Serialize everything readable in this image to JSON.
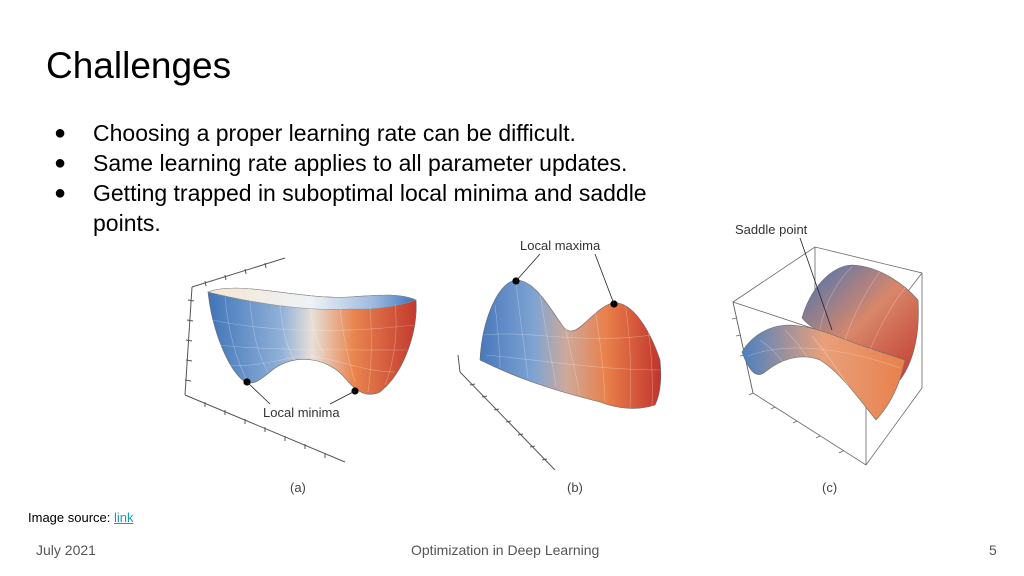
{
  "slide": {
    "title": "Challenges",
    "bullets": [
      "Choosing a proper learning rate can be difficult.",
      "Same learning rate applies to all parameter updates.",
      "Getting trapped in suboptimal local minima and saddle",
      "points."
    ],
    "bullet_symbol": "●",
    "colors": {
      "surface_blue": "#3b6fb6",
      "surface_red": "#c23a2e",
      "surface_orange": "#e8804c",
      "link": "#1a9bb5"
    }
  },
  "figure": {
    "panel_a": {
      "annotation": "Local minima",
      "caption": "(a)"
    },
    "panel_b": {
      "annotation": "Local maxima",
      "caption": "(b)"
    },
    "panel_c": {
      "annotation": "Saddle point",
      "caption": "(c)"
    }
  },
  "source": {
    "label": "Image source: ",
    "link_text": "link"
  },
  "footer": {
    "date": "July 2021",
    "title": "Optimization in Deep Learning",
    "page": "5"
  }
}
